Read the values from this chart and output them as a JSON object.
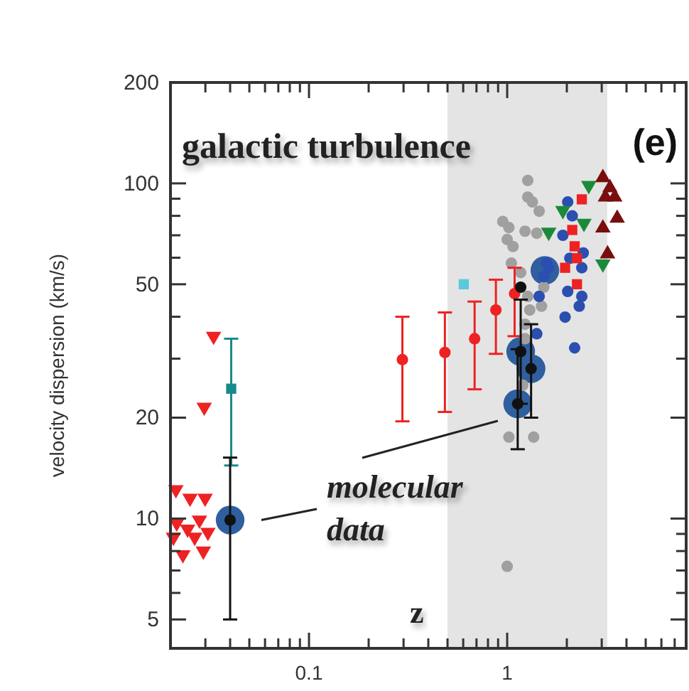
{
  "chart_data": {
    "type": "scatter",
    "title": "galactic turbulence",
    "xlabel": "z",
    "ylabel": "velocity dispersion (km/s)",
    "annotations": [
      "(e)",
      "molecular data"
    ],
    "log": "xy",
    "grid": false,
    "xlim": [
      0.02,
      8
    ],
    "ylim": [
      4.1,
      200
    ],
    "xticks": [
      {
        "value": 0.03,
        "label": null
      },
      {
        "value": 0.04,
        "label": null
      },
      {
        "value": 0.05,
        "label": null
      },
      {
        "value": 0.06,
        "label": null
      },
      {
        "value": 0.07,
        "label": null
      },
      {
        "value": 0.08,
        "label": null
      },
      {
        "value": 0.09,
        "label": null
      },
      0.1,
      {
        "value": 0.2,
        "label": null
      },
      {
        "value": 0.3,
        "label": null
      },
      {
        "value": 0.4,
        "label": null
      },
      {
        "value": 0.5,
        "label": null
      },
      {
        "value": 0.6,
        "label": null
      },
      {
        "value": 0.7,
        "label": null
      },
      {
        "value": 0.8,
        "label": null
      },
      {
        "value": 0.9,
        "label": null
      },
      1,
      {
        "value": 2,
        "label": null
      },
      {
        "value": 3,
        "label": null
      },
      {
        "value": 4,
        "label": null
      },
      {
        "value": 5,
        "label": null
      },
      {
        "value": 6,
        "label": null
      },
      {
        "value": 7,
        "label": null
      },
      {
        "value": 8,
        "label": null
      }
    ],
    "yticks": [
      5,
      {
        "value": 6,
        "label": null
      },
      {
        "value": 7,
        "label": null
      },
      {
        "value": 8,
        "label": null
      },
      {
        "value": 9,
        "label": null
      },
      10,
      20,
      {
        "value": 30,
        "label": null
      },
      {
        "value": 40,
        "label": null
      },
      50,
      {
        "value": 60,
        "label": null
      },
      {
        "value": 70,
        "label": null
      },
      {
        "value": 80,
        "label": null
      },
      {
        "value": 90,
        "label": null
      },
      100,
      200
    ],
    "bands": [
      {
        "axis": "x",
        "from": 0.5,
        "to": 3.2,
        "color": "#e4e4e4"
      }
    ],
    "series": [
      {
        "color": "#2f5f9f",
        "type": "bubble",
        "marker": "circle",
        "x": [
          0.04,
          1.13,
          1.17,
          1.32,
          1.55
        ],
        "values": [
          9.9,
          22,
          31.5,
          28,
          55
        ],
        "sizes": [
          1,
          1,
          1,
          1,
          1
        ]
      },
      {
        "color": "#a0a0a0",
        "marker": "circle",
        "x": [
          1.27,
          1.27,
          1.34,
          1.45,
          0.95,
          1.02,
          1.0,
          1.07,
          1.23,
          1.41,
          1.05,
          1.17,
          1.27,
          1.3,
          1.23,
          1.49,
          1.53,
          1.02,
          1.36,
          1.0,
          1.2,
          1.23
        ],
        "values": [
          102,
          91,
          88,
          82.6,
          77,
          73.8,
          68,
          64.8,
          72,
          71,
          57.8,
          54.2,
          46,
          41.9,
          38,
          43,
          49,
          17.5,
          17.5,
          7.2,
          25,
          34.4
        ]
      },
      {
        "color": "#2b4fb0",
        "marker": "circle",
        "x": [
          2.02,
          2.13,
          1.91,
          1.58,
          1.53,
          2.07,
          2.42,
          2.02,
          2.38,
          1.96,
          2.31,
          2.19,
          1.41,
          1.45,
          1.62,
          2.38
        ],
        "values": [
          88,
          80,
          70,
          57.8,
          52.7,
          59.8,
          62,
          47.6,
          46,
          39.9,
          43,
          32.3,
          35.6,
          46,
          56,
          56
        ]
      },
      {
        "color": "#ee2222",
        "marker": "square",
        "x": [
          2.38,
          2.13,
          2.19,
          2.25,
          1.96,
          2.25
        ],
        "values": [
          89.6,
          72.6,
          64.9,
          59.8,
          56,
          50
        ]
      },
      {
        "color": "#1a8a3a",
        "marker": "triangle-down",
        "x": [
          2.58,
          1.91,
          1.62,
          3.04,
          2.44
        ],
        "values": [
          98.6,
          83,
          71.5,
          57.5,
          76
        ]
      },
      {
        "color": "#7a0e0e",
        "marker": "triangle",
        "x": [
          3.04,
          3.3,
          3.13,
          3.59,
          3.04,
          3.21,
          3.49
        ],
        "values": [
          104,
          97,
          91,
          78.7,
          73.6,
          61.6,
          91
        ]
      },
      {
        "color": "#ee2222",
        "marker": "triangle-down",
        "x": [
          0.0213,
          0.0251,
          0.0299,
          0.0215,
          0.028,
          0.0244,
          0.0207,
          0.0309,
          0.0265,
          0.0231,
          0.0293,
          0.033,
          0.0296
        ],
        "values": [
          12.2,
          11.5,
          11.5,
          9.7,
          9.9,
          9.3,
          8.8,
          9.1,
          8.8,
          7.8,
          8.0,
          35,
          21.5
        ]
      },
      {
        "color": "#ee2222",
        "marker": "circle",
        "x": [
          0.296,
          0.485,
          0.685,
          0.877,
          1.09
        ],
        "values": [
          29.8,
          31.3,
          34.4,
          41.9,
          46.9
        ],
        "errors": [
          [
            19.5,
            40
          ],
          [
            20.8,
            41.2
          ],
          [
            24.3,
            44.4
          ],
          [
            31,
            51.6
          ],
          [
            35,
            56
          ]
        ]
      },
      {
        "color": "#5bc8dc",
        "marker": "square",
        "x": [
          0.604
        ],
        "values": [
          50
        ]
      },
      {
        "color": "#1a8a8a",
        "marker": "square",
        "x": [
          0.0405
        ],
        "values": [
          24.4
        ],
        "errors": [
          [
            14.4,
            34.4
          ]
        ]
      },
      {
        "color": "#111111",
        "marker": "circle",
        "x": [
          0.04,
          1.13,
          1.17,
          1.32,
          1.17
        ],
        "values": [
          9.9,
          22,
          31.5,
          28,
          49
        ],
        "errors": [
          [
            5,
            15.2
          ],
          [
            16.1,
            32
          ],
          [
            22,
            45
          ],
          [
            20,
            38
          ],
          null
        ]
      }
    ]
  }
}
